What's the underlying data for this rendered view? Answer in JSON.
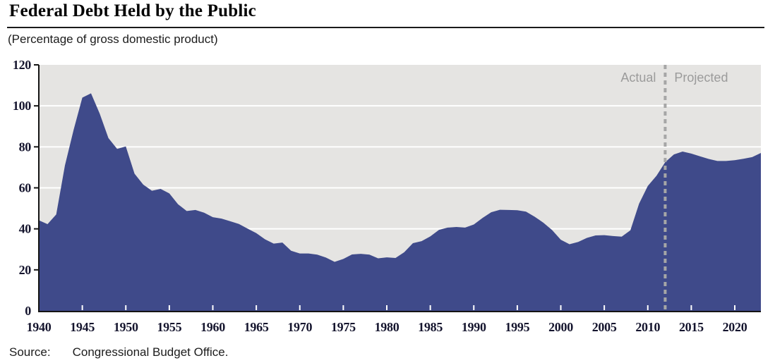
{
  "header": {
    "title": "Federal Debt Held by the Public",
    "subtitle": "(Percentage of gross domestic product)"
  },
  "footer": {
    "source_label": "Source:",
    "source_text": "Congressional Budget Office."
  },
  "chart_data": {
    "type": "area",
    "title": "Federal Debt Held by the Public",
    "ylabel": "Percentage of gross domestic product",
    "xlim": [
      1940,
      2023
    ],
    "ylim": [
      0,
      120
    ],
    "yticks": [
      0,
      20,
      40,
      60,
      80,
      100,
      120
    ],
    "xticks": [
      1940,
      1945,
      1950,
      1955,
      1960,
      1965,
      1970,
      1975,
      1980,
      1985,
      1990,
      1995,
      2000,
      2005,
      2010,
      2015,
      2020
    ],
    "grid": "horizontal-white",
    "divider_year": 2012,
    "annotations": {
      "left_of_divider": "Actual",
      "right_of_divider": "Projected"
    },
    "series": [
      {
        "name": "Federal debt held by the public (% of GDP)",
        "x": [
          1940,
          1941,
          1942,
          1943,
          1944,
          1945,
          1946,
          1947,
          1948,
          1949,
          1950,
          1951,
          1952,
          1953,
          1954,
          1955,
          1956,
          1957,
          1958,
          1959,
          1960,
          1961,
          1962,
          1963,
          1964,
          1965,
          1966,
          1967,
          1968,
          1969,
          1970,
          1971,
          1972,
          1973,
          1974,
          1975,
          1976,
          1977,
          1978,
          1979,
          1980,
          1981,
          1982,
          1983,
          1984,
          1985,
          1986,
          1987,
          1988,
          1989,
          1990,
          1991,
          1992,
          1993,
          1994,
          1995,
          1996,
          1997,
          1998,
          1999,
          2000,
          2001,
          2002,
          2003,
          2004,
          2005,
          2006,
          2007,
          2008,
          2009,
          2010,
          2011,
          2012,
          2013,
          2014,
          2015,
          2016,
          2017,
          2018,
          2019,
          2020,
          2021,
          2022,
          2023
        ],
        "values": [
          44.2,
          42.3,
          47.0,
          70.9,
          88.3,
          104.0,
          106.1,
          96.2,
          84.3,
          79.0,
          80.2,
          66.9,
          61.6,
          58.6,
          59.5,
          57.3,
          52.0,
          48.7,
          49.2,
          47.9,
          45.7,
          45.0,
          43.7,
          42.4,
          40.1,
          37.9,
          34.9,
          32.8,
          33.3,
          29.3,
          28.0,
          28.0,
          27.4,
          26.0,
          23.9,
          25.3,
          27.5,
          27.8,
          27.4,
          25.6,
          26.1,
          25.8,
          28.6,
          33.0,
          34.0,
          36.3,
          39.5,
          40.6,
          40.9,
          40.6,
          42.1,
          45.3,
          48.1,
          49.3,
          49.2,
          49.1,
          48.4,
          45.9,
          43.0,
          39.4,
          34.7,
          32.5,
          33.6,
          35.6,
          36.8,
          36.9,
          36.5,
          36.2,
          39.3,
          52.3,
          60.9,
          65.9,
          72.5,
          76.3,
          77.7,
          76.7,
          75.4,
          74.1,
          73.1,
          73.1,
          73.5,
          74.2,
          75.0,
          77.0
        ]
      }
    ],
    "colors": {
      "area": "#3f4a8a",
      "plot_bg": "#e5e4e2",
      "grid": "#ffffff",
      "axis": "#141414",
      "tick_label": "#15152e",
      "divider": "#a6a6a6",
      "annotation_text": "#9b9b9b"
    }
  }
}
